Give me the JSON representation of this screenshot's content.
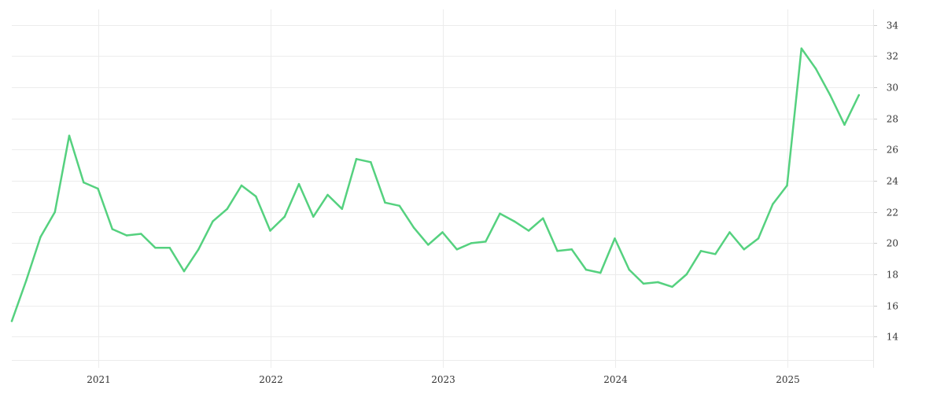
{
  "chart_data": {
    "type": "line",
    "title": "",
    "xlabel": "",
    "ylabel": "",
    "xlim": [
      "2020-07",
      "2025-07"
    ],
    "ylim": [
      12,
      35
    ],
    "x_ticks": [
      {
        "value": "2021-01",
        "label": "2021"
      },
      {
        "value": "2022-01",
        "label": "2022"
      },
      {
        "value": "2023-01",
        "label": "2023"
      },
      {
        "value": "2024-01",
        "label": "2024"
      },
      {
        "value": "2025-01",
        "label": "2025"
      }
    ],
    "y_ticks": [
      14,
      16,
      18,
      20,
      22,
      24,
      26,
      28,
      30,
      32,
      34
    ],
    "grid": true,
    "y_axis_side": "right",
    "legend": "none",
    "series": [
      {
        "color": "#55d17f",
        "x": [
          "2020-07",
          "2020-08",
          "2020-09",
          "2020-10",
          "2020-11",
          "2020-12",
          "2021-01",
          "2021-02",
          "2021-03",
          "2021-04",
          "2021-05",
          "2021-06",
          "2021-07",
          "2021-08",
          "2021-09",
          "2021-10",
          "2021-11",
          "2021-12",
          "2022-01",
          "2022-02",
          "2022-03",
          "2022-04",
          "2022-05",
          "2022-06",
          "2022-07",
          "2022-08",
          "2022-09",
          "2022-10",
          "2022-11",
          "2022-12",
          "2023-01",
          "2023-02",
          "2023-03",
          "2023-04",
          "2023-05",
          "2023-06",
          "2023-07",
          "2023-08",
          "2023-09",
          "2023-10",
          "2023-11",
          "2023-12",
          "2024-01",
          "2024-02",
          "2024-03",
          "2024-04",
          "2024-05",
          "2024-06",
          "2024-07",
          "2024-08",
          "2024-09",
          "2024-10",
          "2024-11",
          "2024-12",
          "2025-01",
          "2025-02",
          "2025-03",
          "2025-04",
          "2025-05",
          "2025-06"
        ],
        "values": [
          15.0,
          17.6,
          20.4,
          22.0,
          26.9,
          23.9,
          23.5,
          20.9,
          20.5,
          20.6,
          19.7,
          19.7,
          18.2,
          19.6,
          21.4,
          22.2,
          23.7,
          23.0,
          20.8,
          21.7,
          23.8,
          21.7,
          23.1,
          22.2,
          25.4,
          25.2,
          22.6,
          22.4,
          21.0,
          19.9,
          20.7,
          19.6,
          20.0,
          20.1,
          21.9,
          21.4,
          20.8,
          21.6,
          19.5,
          19.6,
          18.3,
          18.1,
          20.3,
          18.3,
          17.4,
          17.5,
          17.2,
          18.0,
          19.5,
          19.3,
          20.7,
          19.6,
          20.3,
          22.5,
          23.7,
          32.5,
          31.2,
          29.5,
          27.6,
          29.5
        ]
      }
    ]
  }
}
